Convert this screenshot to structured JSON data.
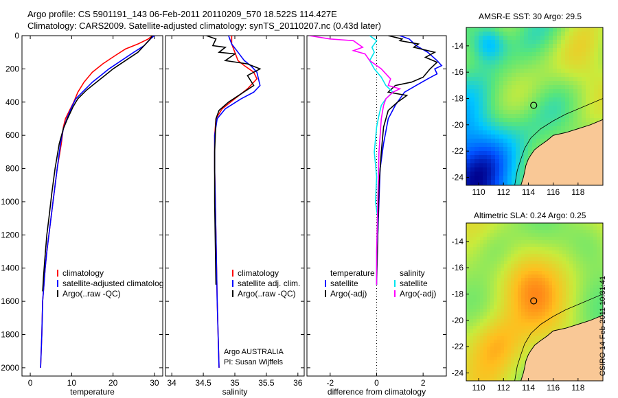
{
  "header": {
    "line1": "Argo profile: CS 5901191_143 06-Feb-2011 20110209_570 18.522S 114.427E",
    "line2": "Climatology: CARS2009. Satellite-adjusted climatology: synTS_20110207.nc (0.43d later)"
  },
  "map_sst": {
    "title": "AMSR-E SST: 30 Argo: 29.5"
  },
  "map_sla": {
    "title": "Altimetric SLA: 0.24 Argo: 0.25"
  },
  "stamp": "CSIRO 14-Feb-2011 10:31:41",
  "colors": {
    "climatology": "#ff0000",
    "satellite": "#0000ff",
    "argo": "#000000",
    "diff_satellite": "#00e5ee",
    "diff_argo": "#ff00ff",
    "land": "#f9c896"
  },
  "chart_data": [
    {
      "type": "line",
      "id": "temperature",
      "xlabel": "temperature",
      "ylabel": "",
      "xlim": [
        -2,
        32
      ],
      "ylim": [
        2050,
        0
      ],
      "xticks": [
        0,
        10,
        20,
        30
      ],
      "yticks": [
        0,
        200,
        400,
        600,
        800,
        1000,
        1200,
        1400,
        1600,
        1800,
        2000
      ],
      "legend": [
        "climatology",
        "satellite-adjusted climatolog",
        "Argo(..raw -QC)"
      ],
      "series": [
        {
          "name": "climatology",
          "color": "#ff0000",
          "x": [
            29.5,
            28.5,
            26,
            23,
            20.5,
            17.5,
            15,
            13,
            11.5,
            10.5,
            9.5,
            8.5,
            8,
            7.5,
            6.5,
            5.5,
            4.5,
            4,
            3.6,
            3.3,
            3,
            2.8,
            2.5
          ],
          "y": [
            0,
            20,
            50,
            80,
            120,
            170,
            220,
            280,
            340,
            400,
            450,
            500,
            550,
            650,
            800,
            1000,
            1200,
            1300,
            1400,
            1500,
            1600,
            1800,
            2000
          ]
        },
        {
          "name": "satellite",
          "color": "#0000ff",
          "x": [
            30,
            29,
            27.5,
            25,
            22,
            19,
            17,
            15,
            13,
            11,
            10,
            9,
            8,
            7.3,
            6.5,
            5.5,
            4.5,
            4,
            3.6,
            3.3,
            3,
            2.8,
            2.5
          ],
          "y": [
            0,
            20,
            60,
            100,
            150,
            200,
            240,
            280,
            330,
            380,
            430,
            490,
            560,
            650,
            800,
            1000,
            1200,
            1300,
            1400,
            1500,
            1600,
            1800,
            2000
          ]
        },
        {
          "name": "argo",
          "color": "#000000",
          "x": [
            29.5,
            29,
            27.5,
            26,
            23,
            20,
            18,
            16,
            13.5,
            11.5,
            10.3,
            9,
            8,
            7,
            6,
            5.2,
            4.5,
            4,
            3.5,
            3.2,
            3
          ],
          "y": [
            0,
            20,
            60,
            100,
            150,
            200,
            240,
            280,
            330,
            380,
            430,
            500,
            560,
            650,
            800,
            950,
            1100,
            1200,
            1350,
            1450,
            1540
          ]
        }
      ]
    },
    {
      "type": "line",
      "id": "salinity",
      "xlabel": "salinity",
      "ylabel": "",
      "xlim": [
        33.9,
        36.1
      ],
      "ylim": [
        2050,
        0
      ],
      "xticks": [
        34,
        34.5,
        35,
        35.5,
        36
      ],
      "yticks": [],
      "legend": [
        "climatology",
        "satellite adj. clim.",
        "Argo(..raw -QC)"
      ],
      "annotation": [
        "Argo AUSTRALIA",
        "PI: Susan Wijffels"
      ],
      "series": [
        {
          "name": "climatology",
          "color": "#ff0000",
          "x": [
            34.95,
            34.95,
            35.0,
            35.05,
            35.15,
            35.3,
            35.35,
            35.2,
            35.0,
            34.8,
            34.7,
            34.68,
            34.68,
            34.7,
            34.72,
            34.75
          ],
          "y": [
            0,
            50,
            100,
            150,
            180,
            220,
            260,
            320,
            380,
            440,
            500,
            600,
            800,
            1200,
            1600,
            2000
          ]
        },
        {
          "name": "satellite",
          "color": "#0000ff",
          "x": [
            34.9,
            34.95,
            35.05,
            35.15,
            35.25,
            35.35,
            35.4,
            35.3,
            35.1,
            34.85,
            34.72,
            34.68,
            34.68,
            34.7,
            34.72,
            34.75
          ],
          "y": [
            0,
            50,
            100,
            150,
            180,
            220,
            300,
            340,
            380,
            440,
            500,
            600,
            800,
            1200,
            1600,
            2000
          ]
        },
        {
          "name": "argo",
          "color": "#000000",
          "x": [
            34.55,
            34.7,
            34.65,
            34.85,
            34.75,
            35.0,
            34.85,
            35.2,
            35.4,
            35.2,
            35.3,
            35.1,
            34.9,
            34.75,
            34.7,
            34.68,
            34.68,
            34.7
          ],
          "y": [
            0,
            20,
            60,
            70,
            100,
            110,
            150,
            170,
            200,
            240,
            300,
            350,
            400,
            450,
            500,
            700,
            1000,
            1500
          ]
        }
      ]
    },
    {
      "type": "line",
      "id": "difference",
      "xlabel": "difference from climatology",
      "ylabel": "",
      "xlim": [
        -3,
        3
      ],
      "ylim": [
        2050,
        0
      ],
      "xticks": [
        -2,
        0,
        2
      ],
      "yticks": [],
      "legend_temperature": {
        "title": "temperature",
        "items": [
          "satellite",
          "Argo(-adj)"
        ]
      },
      "legend_salinity": {
        "title": "salinity",
        "items": [
          "satellite",
          "Argo(-adj)"
        ]
      },
      "series": [
        {
          "name": "temperature satellite",
          "color": "#0000ff",
          "x": [
            1.0,
            1.4,
            1.7,
            2.2,
            2.6,
            2.8,
            2.5,
            2.6,
            2.2,
            1.7,
            1.2,
            1.0,
            0.8,
            0.5,
            0.3,
            0.15,
            0.1,
            0.05,
            0,
            0
          ],
          "y": [
            0,
            20,
            60,
            100,
            150,
            180,
            200,
            230,
            260,
            300,
            340,
            380,
            420,
            500,
            650,
            800,
            1000,
            1200,
            1400,
            1500
          ]
        },
        {
          "name": "temperature Argo",
          "color": "#000000",
          "x": [
            0.5,
            1.1,
            1.0,
            1.8,
            1.6,
            2.5,
            2.1,
            2.6,
            2.3,
            2.0,
            1.5,
            0.8,
            0.5,
            1.3,
            0.9,
            0.5,
            0.3,
            0.2,
            0.1,
            0.05,
            0
          ],
          "y": [
            0,
            20,
            30,
            50,
            70,
            100,
            130,
            160,
            200,
            250,
            280,
            300,
            340,
            360,
            400,
            450,
            550,
            700,
            900,
            1200,
            1500
          ]
        },
        {
          "name": "salinity satellite",
          "color": "#00e5ee",
          "x": [
            -0.3,
            0,
            -0.2,
            -0.1,
            -0.3,
            -0.1,
            0.2,
            0.4,
            0.7,
            0.4,
            0.2,
            0.1,
            0,
            -0.1,
            0,
            -0.05,
            0.05,
            0,
            0
          ],
          "y": [
            0,
            30,
            70,
            100,
            150,
            200,
            250,
            300,
            340,
            380,
            420,
            480,
            550,
            700,
            850,
            1000,
            1100,
            1300,
            1500
          ]
        },
        {
          "name": "salinity Argo",
          "color": "#ff00ff",
          "x": [
            -2.9,
            -2.0,
            -1.0,
            -0.8,
            -0.6,
            -1.0,
            -0.5,
            -0.3,
            0.2,
            0.6,
            0.5,
            1.0,
            0.7,
            0.4,
            0.3,
            0.2,
            0.1,
            0.05,
            0,
            0
          ],
          "y": [
            0,
            20,
            30,
            50,
            70,
            90,
            110,
            150,
            200,
            260,
            300,
            320,
            340,
            380,
            420,
            500,
            700,
            1000,
            1300,
            1500
          ]
        }
      ]
    },
    {
      "type": "heatmap",
      "id": "map-sst",
      "title": "AMSR-E SST: 30 Argo: 29.5",
      "xlim": [
        109,
        120
      ],
      "ylim": [
        -24.6,
        -12.6
      ],
      "xticks": [
        110,
        112,
        114,
        116,
        118
      ],
      "yticks": [
        -14,
        -16,
        -18,
        -20,
        -22,
        -24
      ],
      "argo_position": [
        114.43,
        -18.52
      ]
    },
    {
      "type": "heatmap",
      "id": "map-sla",
      "title": "Altimetric SLA: 0.24 Argo: 0.25",
      "xlim": [
        109,
        120
      ],
      "ylim": [
        -24.6,
        -12.6
      ],
      "xticks": [
        110,
        112,
        114,
        116,
        118
      ],
      "yticks": [
        -14,
        -16,
        -18,
        -20,
        -22,
        -24
      ],
      "argo_position": [
        114.43,
        -18.52
      ]
    }
  ]
}
